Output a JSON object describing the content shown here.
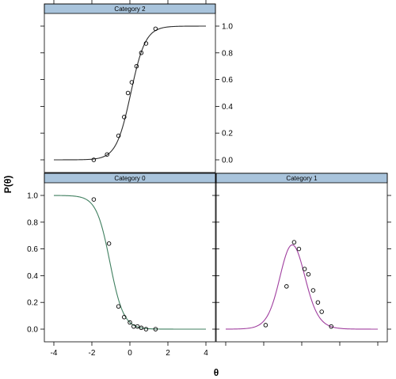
{
  "chart_data": {
    "type": "line",
    "layout": "lattice 2x2 panels",
    "xlabel": "θ",
    "ylabel": "P(θ)",
    "xlim": [
      -4,
      4
    ],
    "ylim": [
      0,
      1
    ],
    "x_ticks": [
      -4,
      -2,
      0,
      2,
      4
    ],
    "y_ticks": [
      0.0,
      0.2,
      0.4,
      0.6,
      0.8,
      1.0
    ],
    "x_tick_labels": [
      "-4",
      "-2",
      "0",
      "2",
      "4"
    ],
    "y_tick_labels": [
      "0.0",
      "0.2",
      "0.4",
      "0.6",
      "0.8",
      "1.0"
    ],
    "strip_color": "#a9c4dc",
    "grid": false,
    "panels": [
      {
        "name": "Category 2",
        "line_color": "#2b2b2b",
        "observed_x": [
          -1.9,
          -1.2,
          -0.6,
          -0.3,
          -0.1,
          0.1,
          0.35,
          0.6,
          0.85,
          1.35
        ],
        "observed_y": [
          0.0,
          0.04,
          0.18,
          0.32,
          0.5,
          0.58,
          0.7,
          0.8,
          0.87,
          0.98
        ]
      },
      {
        "name": "Category 0",
        "line_color": "#3f7f5f",
        "observed_x": [
          -1.9,
          -1.1,
          -0.6,
          -0.3,
          0.0,
          0.2,
          0.4,
          0.6,
          0.85,
          1.35
        ],
        "observed_y": [
          0.97,
          0.64,
          0.17,
          0.09,
          0.05,
          0.02,
          0.02,
          0.01,
          0.0,
          0.0
        ]
      },
      {
        "name": "Category 1",
        "line_color": "#a03f9f",
        "observed_x": [
          -1.9,
          -0.8,
          -0.4,
          -0.15,
          0.15,
          0.35,
          0.6,
          0.85,
          1.05,
          1.55
        ],
        "observed_y": [
          0.03,
          0.32,
          0.65,
          0.6,
          0.45,
          0.41,
          0.29,
          0.2,
          0.13,
          0.02
        ]
      }
    ]
  }
}
